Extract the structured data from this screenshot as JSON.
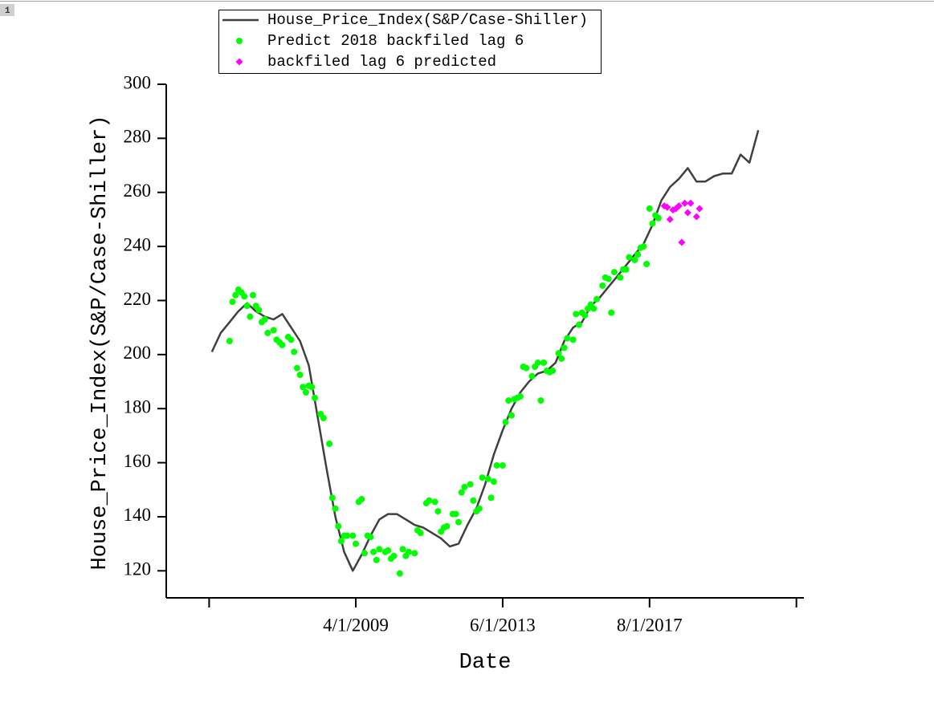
{
  "page_tab": "1",
  "chart_data": {
    "type": "line",
    "xlabel": "Date",
    "ylabel": "House_Price_Index(S&P/Case-Shiller)",
    "xlim": [
      "2003-12-01",
      "2021-12-01"
    ],
    "xticks": [
      {
        "value": "2005-02-01",
        "label": null
      },
      {
        "value": "2009-04-01",
        "label": "4/1/2009"
      },
      {
        "value": "2013-06-01",
        "label": "6/1/2013"
      },
      {
        "value": "2017-08-01",
        "label": "8/1/2017"
      },
      {
        "value": "2021-10-01",
        "label": null
      }
    ],
    "ylim": [
      110,
      300
    ],
    "yticks": [
      120,
      140,
      160,
      180,
      200,
      220,
      240,
      260,
      280,
      300
    ],
    "legend": "top",
    "series": [
      {
        "name": "House_Price_Index(S&P/Case-Shiller)",
        "type": "line",
        "color": "#404040",
        "x": [
          "2005-03-01",
          "2005-06-01",
          "2005-09-01",
          "2005-12-01",
          "2006-03-01",
          "2006-06-01",
          "2006-09-01",
          "2006-12-01",
          "2007-03-01",
          "2007-06-01",
          "2007-09-01",
          "2007-12-01",
          "2008-03-01",
          "2008-06-01",
          "2008-09-01",
          "2008-12-01",
          "2009-03-01",
          "2009-06-01",
          "2009-09-01",
          "2009-12-01",
          "2010-03-01",
          "2010-06-01",
          "2010-09-01",
          "2010-12-01",
          "2011-03-01",
          "2011-06-01",
          "2011-09-01",
          "2011-12-01",
          "2012-03-01",
          "2012-06-01",
          "2012-09-01",
          "2012-12-01",
          "2013-03-01",
          "2013-06-01",
          "2013-09-01",
          "2013-12-01",
          "2014-03-01",
          "2014-06-01",
          "2014-09-01",
          "2014-12-01",
          "2015-03-01",
          "2015-06-01",
          "2015-09-01",
          "2015-12-01",
          "2016-03-01",
          "2016-06-01",
          "2016-09-01",
          "2016-12-01",
          "2017-03-01",
          "2017-06-01",
          "2017-09-01",
          "2017-12-01",
          "2018-03-01",
          "2018-06-01",
          "2018-09-01",
          "2018-12-01",
          "2019-03-01",
          "2019-06-01",
          "2019-09-01",
          "2019-12-01",
          "2020-03-01",
          "2020-06-01",
          "2020-09-01"
        ],
        "values": [
          201,
          208,
          212,
          216,
          219,
          216,
          214,
          213,
          215,
          210,
          205,
          196,
          177,
          158,
          140,
          127,
          120,
          126,
          133,
          139,
          141,
          141,
          139,
          137,
          136,
          134,
          132,
          129,
          130,
          137,
          143,
          152,
          163,
          172,
          180,
          186,
          190,
          193,
          194,
          197,
          205,
          210,
          212,
          218,
          221,
          225,
          229,
          233,
          237,
          241,
          248,
          257,
          262,
          265,
          269,
          264,
          264,
          266,
          267,
          267,
          274,
          271,
          283
        ]
      },
      {
        "name": "Predict 2018 backfiled lag 6",
        "type": "scatter",
        "marker": "circle",
        "color": "#00ff00",
        "x": [
          "2005-09-01",
          "2005-10-01",
          "2005-11-01",
          "2005-12-01",
          "2006-01-01",
          "2006-02-01",
          "2006-03-01",
          "2006-04-01",
          "2006-05-01",
          "2006-06-01",
          "2006-07-01",
          "2006-08-01",
          "2006-09-01",
          "2006-10-01",
          "2006-12-01",
          "2007-01-01",
          "2007-02-01",
          "2007-03-01",
          "2007-05-01",
          "2007-06-01",
          "2007-07-01",
          "2007-08-01",
          "2007-09-01",
          "2007-10-01",
          "2007-11-01",
          "2007-12-01",
          "2008-01-01",
          "2008-02-01",
          "2008-04-01",
          "2008-05-01",
          "2008-07-01",
          "2008-08-01",
          "2008-09-01",
          "2008-10-01",
          "2008-11-01",
          "2008-12-01",
          "2009-01-01",
          "2009-03-01",
          "2009-04-01",
          "2009-05-01",
          "2009-06-01",
          "2009-07-01",
          "2009-08-01",
          "2009-09-01",
          "2009-10-01",
          "2009-11-01",
          "2009-12-01",
          "2010-02-01",
          "2010-03-01",
          "2010-04-01",
          "2010-05-01",
          "2010-07-01",
          "2010-08-01",
          "2010-09-01",
          "2010-10-01",
          "2010-12-01",
          "2011-01-01",
          "2011-02-01",
          "2011-04-01",
          "2011-05-01",
          "2011-07-01",
          "2011-08-01",
          "2011-09-01",
          "2011-10-01",
          "2011-11-01",
          "2012-01-01",
          "2012-02-01",
          "2012-03-01",
          "2012-04-01",
          "2012-05-01",
          "2012-07-01",
          "2012-08-01",
          "2012-09-01",
          "2012-10-01",
          "2012-11-01",
          "2013-01-01",
          "2013-02-01",
          "2013-03-01",
          "2013-04-01",
          "2013-06-01",
          "2013-07-01",
          "2013-08-01",
          "2013-09-01",
          "2013-10-01",
          "2013-11-01",
          "2013-12-01",
          "2014-01-01",
          "2014-02-01",
          "2014-04-01",
          "2014-05-01",
          "2014-06-01",
          "2014-07-01",
          "2014-08-01",
          "2014-09-01",
          "2014-10-01",
          "2014-11-01",
          "2015-01-01",
          "2015-02-01",
          "2015-03-01",
          "2015-04-01",
          "2015-06-01",
          "2015-07-01",
          "2015-08-01",
          "2015-09-01",
          "2015-10-01",
          "2015-11-01",
          "2015-12-01",
          "2016-01-01",
          "2016-02-01",
          "2016-04-01",
          "2016-05-01",
          "2016-06-01",
          "2016-07-01",
          "2016-08-01",
          "2016-10-01",
          "2016-11-01",
          "2016-12-01",
          "2017-01-01",
          "2017-03-01",
          "2017-04-01",
          "2017-05-01",
          "2017-06-01",
          "2017-07-01",
          "2017-08-01",
          "2017-09-01",
          "2017-10-01",
          "2017-11-01"
        ],
        "values": [
          205,
          219.5,
          222,
          224,
          223,
          221.5,
          218,
          214,
          222,
          218,
          216.5,
          212,
          213,
          208,
          209,
          205.5,
          204.5,
          203.5,
          206.5,
          205.5,
          201,
          195,
          192.5,
          188,
          186,
          188.5,
          188,
          184,
          178,
          176.5,
          167,
          147,
          143,
          136.5,
          131,
          133,
          133,
          133,
          130,
          145.5,
          146.5,
          126.5,
          133,
          132.5,
          127,
          124,
          128,
          127,
          127.5,
          124.5,
          125.5,
          119,
          128,
          125.5,
          127,
          126.5,
          135,
          134,
          145,
          146,
          145.5,
          142,
          134.5,
          136,
          136.5,
          141,
          141,
          138,
          149,
          151,
          152,
          146,
          142,
          143,
          154.5,
          154,
          147,
          153,
          159,
          159,
          175,
          183,
          177.5,
          183.5,
          184,
          184.5,
          195.5,
          195,
          192,
          195.5,
          197,
          183,
          197,
          194,
          193.5,
          194,
          200.5,
          198.5,
          202.5,
          206,
          205.5,
          215,
          211,
          215.5,
          214.5,
          217,
          218.5,
          217,
          220.5,
          225.5,
          228.5,
          228,
          215.5,
          230.5,
          228.5,
          231.5,
          231.5,
          236,
          235,
          237,
          239.5,
          240,
          233.5,
          254,
          248.5,
          251.5,
          250.5
        ]
      },
      {
        "name": "backfiled lag 6 predicted",
        "type": "scatter",
        "marker": "diamond",
        "color": "#ff00ff",
        "x": [
          "2018-01-01",
          "2018-02-01",
          "2018-03-01",
          "2018-04-01",
          "2018-05-01",
          "2018-06-01",
          "2018-07-01",
          "2018-08-01",
          "2018-09-01",
          "2018-10-01",
          "2018-12-01",
          "2019-01-01"
        ],
        "values": [
          255,
          254.5,
          250,
          253.5,
          254,
          255,
          241.5,
          256,
          252.5,
          256,
          251,
          254
        ]
      }
    ]
  }
}
